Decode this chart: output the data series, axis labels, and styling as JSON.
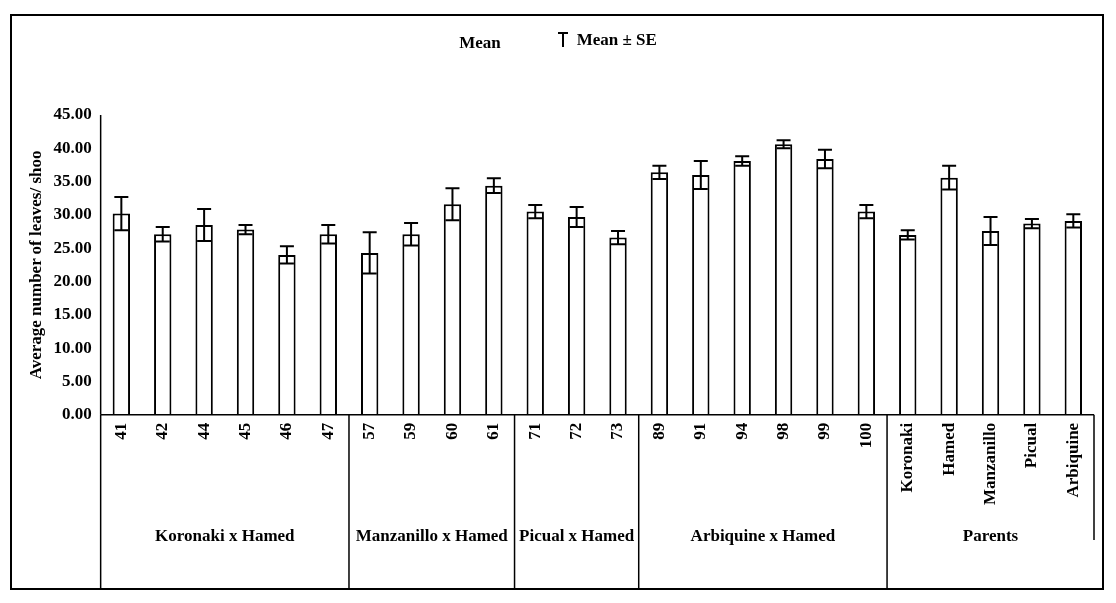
{
  "chart_data": {
    "type": "bar",
    "ylabel": "Average number of leaves/ shoo",
    "categories": [
      "41",
      "42",
      "44",
      "45",
      "46",
      "47",
      "57",
      "59",
      "60",
      "61",
      "71",
      "72",
      "73",
      "89",
      "91",
      "94",
      "98",
      "99",
      "100",
      "Koronaki",
      "Hamed",
      "Manzanillo",
      "Picual",
      "Arbiquine"
    ],
    "series": [
      {
        "name": "Mean",
        "color": "#ffffff",
        "values": [
          30.2,
          27.1,
          28.5,
          27.8,
          24.0,
          27.1,
          24.3,
          27.1,
          31.6,
          34.4,
          30.5,
          29.7,
          26.6,
          36.4,
          36.0,
          38.1,
          40.6,
          38.4,
          30.5,
          27.0,
          35.6,
          27.6,
          28.7,
          29.1
        ],
        "errors": [
          2.5,
          1.1,
          2.4,
          0.7,
          1.3,
          1.4,
          3.1,
          1.7,
          2.4,
          1.1,
          1.0,
          1.5,
          1.0,
          1.0,
          2.1,
          0.7,
          0.6,
          1.4,
          1.0,
          0.7,
          1.8,
          2.1,
          0.7,
          1.0
        ]
      }
    ],
    "ylim": [
      0,
      45
    ],
    "yticks": [
      {
        "value": 0,
        "label": "0.00"
      },
      {
        "value": 5,
        "label": "5.00"
      },
      {
        "value": 10,
        "label": "10.00"
      },
      {
        "value": 15,
        "label": "15.00"
      },
      {
        "value": 20,
        "label": "20.00"
      },
      {
        "value": 25,
        "label": "25.00"
      },
      {
        "value": 30,
        "label": "30.00"
      },
      {
        "value": 35,
        "label": "35.00"
      },
      {
        "value": 40,
        "label": "40.00"
      },
      {
        "value": 45,
        "label": "45.00"
      }
    ],
    "grid": false,
    "legend": "top",
    "annotations": [
      "Mean ± SE",
      "Koronaki x Hamed",
      "Manzanillo x Hamed",
      "Picual x Hamed",
      "Arbiquine x Hamed",
      "Parents"
    ]
  }
}
